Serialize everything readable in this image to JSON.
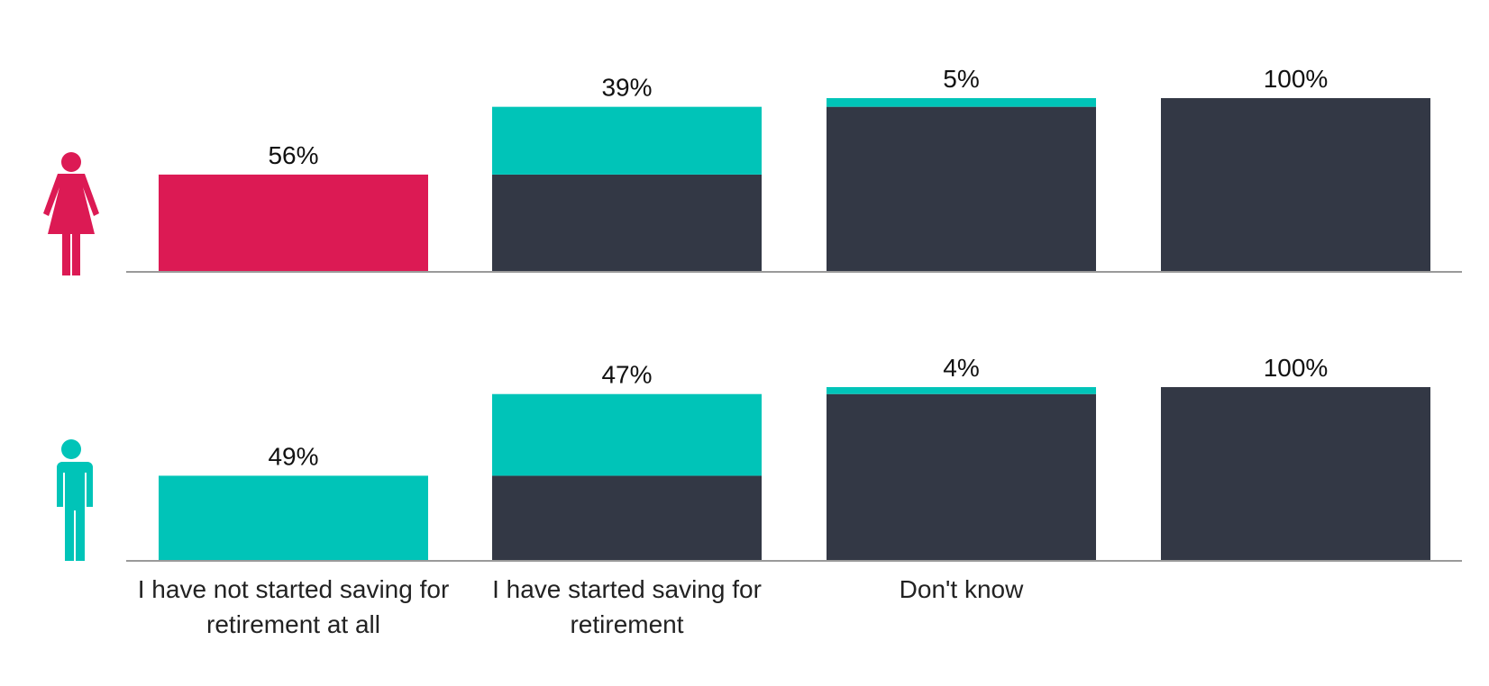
{
  "chart_data": [
    {
      "type": "waterfall",
      "values": [
        56,
        39,
        5,
        100
      ],
      "value_labels": [
        "56%",
        "39%",
        "5%",
        "100%"
      ],
      "color": "#dc1a54",
      "increment_color": "#00c4b8",
      "base_color": "#333845",
      "ylim": [
        0,
        100
      ]
    },
    {
      "type": "waterfall",
      "categories": [
        "I have not started saving for retirement at all",
        "I have started saving for retirement",
        "Don't know",
        null
      ],
      "values": [
        49,
        47,
        4,
        100
      ],
      "value_labels": [
        "49%",
        "47%",
        "4%",
        "100%"
      ],
      "color": "#00c4b8",
      "increment_color": "#00c4b8",
      "base_color": "#333845",
      "ylim": [
        0,
        100
      ]
    }
  ]
}
